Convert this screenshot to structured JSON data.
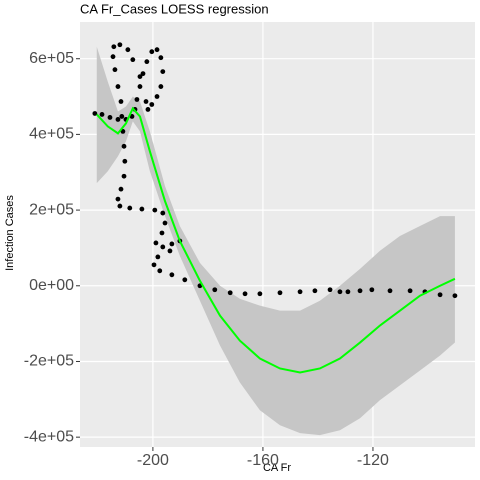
{
  "chart_data": {
    "type": "scatter",
    "title": "CA Fr_Cases LOESS regression",
    "xlabel": "CA Fr",
    "ylabel": "Infection Cases",
    "xlim": [
      -226.5,
      -82.9
    ],
    "ylim": [
      -426000,
      697000
    ],
    "xticks": [
      -200,
      -160,
      -120
    ],
    "yticks": [
      {
        "value": 600000,
        "label": "6e+05"
      },
      {
        "value": 400000,
        "label": "4e+05"
      },
      {
        "value": 200000,
        "label": "2e+05"
      },
      {
        "value": 0,
        "label": "0e+00"
      },
      {
        "value": -200000,
        "label": "-2e+05"
      },
      {
        "value": -400000,
        "label": "-4e+05"
      }
    ],
    "grid": true,
    "points": {
      "color": "#000000",
      "x": [
        -221.1,
        -218.5,
        -215.6,
        -212.7,
        -209.8,
        -207.6,
        -206.5,
        -205.8,
        -204.7,
        -203.6,
        -202.2,
        -200.4,
        -198.5,
        -197.1,
        -196.4,
        -197.1,
        -198.5,
        -200.4,
        -201.8,
        -202.5,
        -204.7,
        -207.3,
        -209.1,
        -212.0,
        -214.2,
        -214.5,
        -213.8,
        -212.7,
        -211.6,
        -211.3,
        -210.9,
        -210.5,
        -210.2,
        -210.5,
        -211.6,
        -212.7,
        -212.0,
        -208.4,
        -204.0,
        -199.3,
        -196.4,
        -195.6,
        -196.7,
        -198.9,
        -196.4,
        -193.1,
        -190.2,
        -193.8,
        -198.2,
        -199.6,
        -197.5,
        -193.1,
        -188.4,
        -182.9,
        -177.5,
        -171.9,
        -166.5,
        -161.1,
        -153.8,
        -146.5,
        -141.1,
        -135.6,
        -132.0,
        -129.1,
        -124.7,
        -120.4,
        -113.8,
        -106.5,
        -101.1,
        -95.6,
        -90.2
      ],
      "values": [
        455300,
        452700,
        444800,
        439500,
        439500,
        447400,
        465900,
        492200,
        526400,
        560600,
        592200,
        618500,
        623800,
        602700,
        565900,
        526400,
        500100,
        479000,
        465900,
        486900,
        552700,
        597500,
        623800,
        636900,
        631700,
        605400,
        571100,
        526400,
        486900,
        447400,
        407900,
        368500,
        329000,
        289500,
        255300,
        229000,
        210600,
        205300,
        202700,
        200000,
        192100,
        165800,
        139500,
        113200,
        102600,
        110500,
        118400,
        92100,
        76300,
        55300,
        39500,
        29000,
        15800,
        0,
        -10500,
        -18400,
        -21100,
        -21100,
        -18400,
        -15800,
        -13200,
        -10500,
        -15800,
        -15800,
        -13200,
        -10500,
        -13200,
        -13200,
        -15800,
        -23700,
        -26300
      ]
    },
    "smooth": {
      "color": "#00ff00",
      "band_color": "#c6c6c6",
      "x": [
        -220.4,
        -216.4,
        -212.7,
        -209.8,
        -207.3,
        -204.7,
        -201.1,
        -195.6,
        -190.2,
        -182.9,
        -175.6,
        -168.4,
        -161.1,
        -153.8,
        -146.5,
        -139.3,
        -132.0,
        -124.7,
        -117.5,
        -110.2,
        -102.9,
        -95.6,
        -90.2
      ],
      "values": [
        452700,
        421100,
        402700,
        429000,
        468500,
        447400,
        355300,
        223700,
        118400,
        13200,
        -79000,
        -144800,
        -192100,
        -218500,
        -229000,
        -218500,
        -192100,
        -150000,
        -105300,
        -65800,
        -26300,
        0,
        18400
      ],
      "upper": [
        631700,
        539600,
        460600,
        473700,
        500000,
        486900,
        407900,
        263200,
        157900,
        60500,
        0,
        -34200,
        -52600,
        -65800,
        -65800,
        -39500,
        0,
        44700,
        92100,
        131600,
        157900,
        184200,
        184200
      ],
      "lower": [
        271100,
        302600,
        342100,
        381600,
        434300,
        408000,
        302600,
        184200,
        78900,
        -39500,
        -157900,
        -255300,
        -329000,
        -368500,
        -389500,
        -394700,
        -381600,
        -350000,
        -302600,
        -263200,
        -223700,
        -184200,
        -150000
      ]
    }
  }
}
